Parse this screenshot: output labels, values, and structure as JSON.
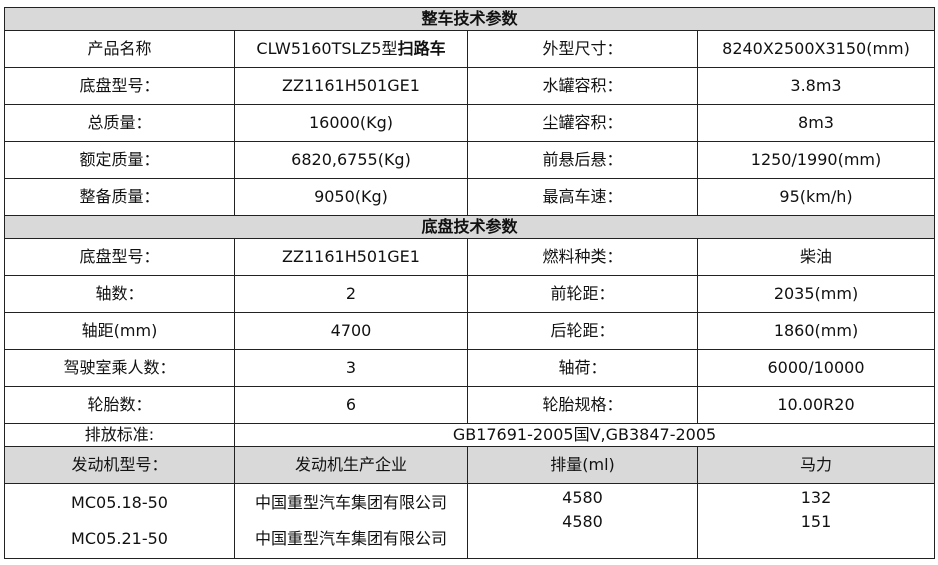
{
  "section1": {
    "title": "整车技术参数",
    "rows": [
      {
        "label1": "产品名称",
        "value1": "CLW5160TSLZ5型",
        "value1_bold": "扫路车",
        "label2": "外型尺寸：",
        "value2": "8240X2500X3150(mm)"
      },
      {
        "label1": "底盘型号：",
        "value1": "ZZ1161H501GE1",
        "label2": "水罐容积：",
        "value2": "3.8m3"
      },
      {
        "label1": "总质量：",
        "value1": "16000(Kg)",
        "label2": "尘罐容积：",
        "value2": "8m3"
      },
      {
        "label1": "额定质量：",
        "value1": "6820,6755(Kg)",
        "label2": "前悬后悬：",
        "value2": "1250/1990(mm)"
      },
      {
        "label1": "整备质量：",
        "value1": "9050(Kg)",
        "label2": "最高车速：",
        "value2": "95(km/h)"
      }
    ]
  },
  "section2": {
    "title": "底盘技术参数",
    "rows": [
      {
        "label1": "底盘型号：",
        "value1": "ZZ1161H501GE1",
        "label2": "燃料种类：",
        "value2": "柴油"
      },
      {
        "label1": "轴数：",
        "value1": "2",
        "label2": "前轮距：",
        "value2": "2035(mm)"
      },
      {
        "label1": "轴距(mm)",
        "value1": "4700",
        "label2": "后轮距：",
        "value2": "1860(mm)"
      },
      {
        "label1": "驾驶室乘人数：",
        "value1": "3",
        "label2": "轴荷：",
        "value2": "6000/10000"
      },
      {
        "label1": "轮胎数：",
        "value1": "6",
        "label2": "轮胎规格：",
        "value2": "10.00R20"
      }
    ],
    "emission_label": "排放标准:",
    "emission_value": "GB17691-2005国V,GB3847-2005"
  },
  "engine": {
    "headers": [
      "发动机型号：",
      "发动机生产企业",
      "排量(ml)",
      "马力"
    ],
    "rows": [
      {
        "model": "MC05.18-50",
        "maker": "中国重型汽车集团有限公司",
        "displacement": "4580",
        "power": "132"
      },
      {
        "model": "MC05.21-50",
        "maker": "中国重型汽车集团有限公司",
        "displacement": "4580",
        "power": "151"
      }
    ]
  }
}
